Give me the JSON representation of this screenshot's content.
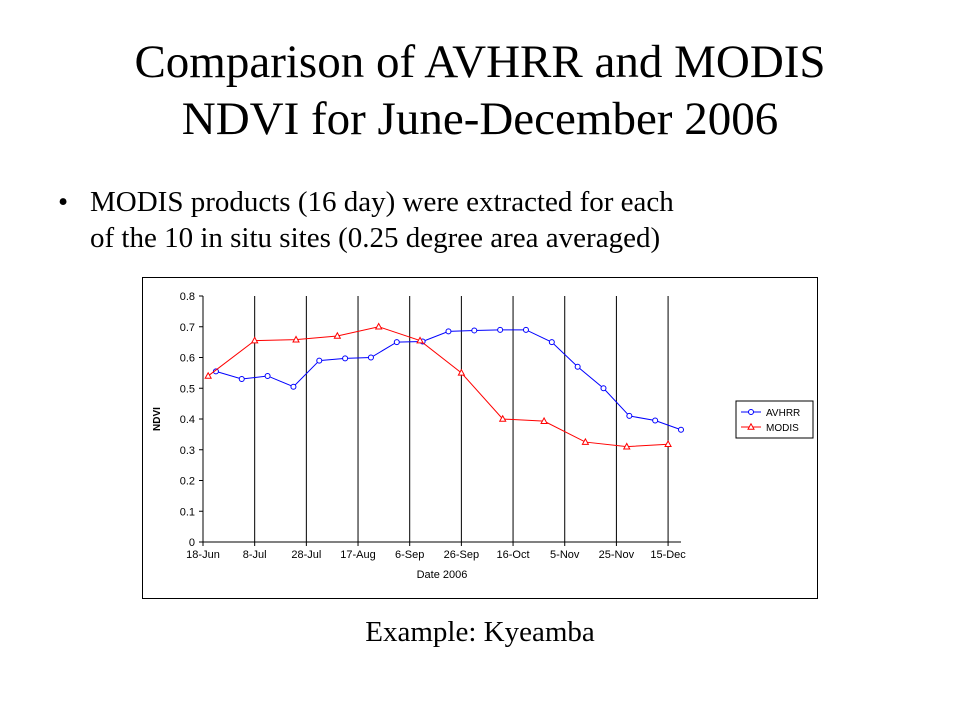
{
  "slide": {
    "title_line1": "Comparison of AVHRR and MODIS",
    "title_line2": "NDVI for June-December 2006",
    "bullet_symbol": "•",
    "bullet_line1": "MODIS products (16 day) were extracted for each",
    "bullet_line2": "of the 10 in situ sites (0.25 degree area averaged)",
    "caption": "Example: Kyeamba"
  },
  "chart_data": {
    "type": "line",
    "xlabel": "Date 2006",
    "ylabel": "NDVI",
    "ylim": [
      0,
      0.8
    ],
    "yticks": [
      0,
      0.1,
      0.2,
      0.3,
      0.4,
      0.5,
      0.6,
      0.7,
      0.8
    ],
    "ytick_labels": [
      "0",
      "0.1",
      "0.2",
      "0.3",
      "0.4",
      "0.5",
      "0.6",
      "0.7",
      "0.8"
    ],
    "xticks": [
      "2006-06-18",
      "2006-07-08",
      "2006-07-28",
      "2006-08-17",
      "2006-09-06",
      "2006-09-26",
      "2006-10-16",
      "2006-11-05",
      "2006-11-25",
      "2006-12-15"
    ],
    "xtick_labels": [
      "18-Jun",
      "8-Jul",
      "28-Jul",
      "17-Aug",
      "6-Sep",
      "26-Sep",
      "16-Oct",
      "5-Nov",
      "25-Nov",
      "15-Dec"
    ],
    "xlim": [
      "2006-06-18",
      "2006-12-20"
    ],
    "grid": "vertical lines at x ticks",
    "legend": "right",
    "series": [
      {
        "name": "AVHRR",
        "color": "#0000ff",
        "marker": "circle",
        "x": [
          "2006-06-23",
          "2006-07-03",
          "2006-07-13",
          "2006-07-23",
          "2006-08-02",
          "2006-08-12",
          "2006-08-22",
          "2006-09-01",
          "2006-09-11",
          "2006-09-21",
          "2006-10-01",
          "2006-10-11",
          "2006-10-21",
          "2006-10-31",
          "2006-11-10",
          "2006-11-20",
          "2006-11-30",
          "2006-12-10",
          "2006-12-20"
        ],
        "values": [
          0.555,
          0.53,
          0.54,
          0.505,
          0.59,
          0.597,
          0.6,
          0.65,
          0.652,
          0.685,
          0.688,
          0.69,
          0.69,
          0.65,
          0.57,
          0.5,
          0.41,
          0.395,
          0.365
        ]
      },
      {
        "name": "MODIS",
        "color": "#ff0000",
        "marker": "triangle",
        "x": [
          "2006-06-20",
          "2006-07-08",
          "2006-07-24",
          "2006-08-09",
          "2006-08-25",
          "2006-09-10",
          "2006-09-26",
          "2006-10-12",
          "2006-10-28",
          "2006-11-13",
          "2006-11-29",
          "2006-12-15"
        ],
        "values": [
          0.54,
          0.655,
          0.658,
          0.67,
          0.7,
          0.655,
          0.55,
          0.4,
          0.393,
          0.325,
          0.31,
          0.318
        ]
      }
    ]
  }
}
